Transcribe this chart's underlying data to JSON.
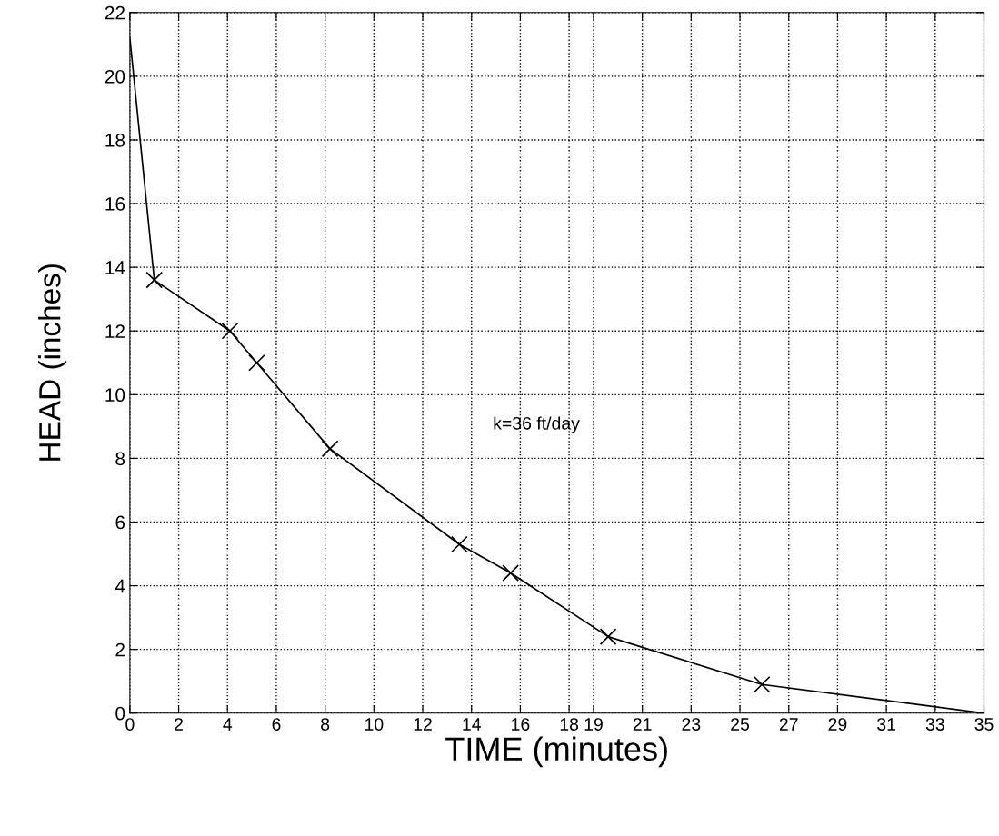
{
  "chart_data": {
    "type": "line",
    "xlabel": "TIME (minutes)",
    "ylabel": "HEAD (inches)",
    "series": [
      {
        "color": "#000000",
        "marker": "none",
        "x": [
          0,
          1.0,
          4.1,
          5.2,
          8.2,
          13.5,
          15.6,
          19.6,
          25.9,
          35
        ],
        "values": [
          21.2,
          13.6,
          12.0,
          11.0,
          8.3,
          5.3,
          4.4,
          2.4,
          0.9,
          0
        ]
      },
      {
        "type": "scatter",
        "color": "#000000",
        "marker": "cross",
        "x": [
          1.0,
          4.1,
          5.2,
          8.2,
          13.5,
          15.6,
          19.6,
          25.9
        ],
        "values": [
          13.6,
          12.0,
          11.0,
          8.3,
          5.3,
          4.4,
          2.4,
          0.9
        ]
      }
    ],
    "xlim": [
      0,
      35
    ],
    "xticks": [
      0,
      2,
      4,
      6,
      8,
      10,
      12,
      14,
      16,
      18,
      19,
      21,
      23,
      25,
      27,
      29,
      31,
      33,
      35
    ],
    "ylim": [
      0,
      22
    ],
    "yticks": [
      0,
      2,
      4,
      6,
      8,
      10,
      12,
      14,
      16,
      18,
      20,
      22
    ],
    "grid": true,
    "line_style": "solid",
    "annotations": [
      "k=36 ft/day"
    ]
  }
}
